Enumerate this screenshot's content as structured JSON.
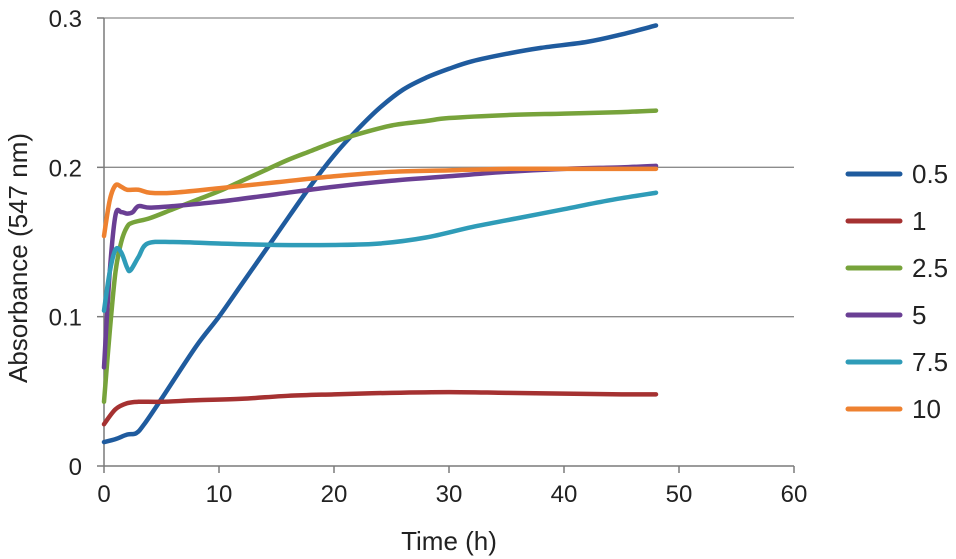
{
  "chart_data": {
    "type": "line",
    "title": "",
    "xlabel": "Time (h)",
    "ylabel": "Absorbance (547 nm)",
    "xlim": [
      0,
      60
    ],
    "ylim": [
      0,
      0.3
    ],
    "x_ticks": [
      0,
      10,
      20,
      30,
      40,
      50,
      60
    ],
    "y_ticks": [
      0,
      0.1,
      0.2,
      0.3
    ],
    "x_tick_labels": [
      "0",
      "10",
      "20",
      "30",
      "40",
      "50",
      "60"
    ],
    "y_tick_labels": [
      "0",
      "0.1",
      "0.2",
      "0.3"
    ],
    "grid": "horizontal",
    "legend_position": "right",
    "series": [
      {
        "name": "0.5",
        "color": "#1f5b9e",
        "points": [
          [
            0,
            0.016
          ],
          [
            1,
            0.018
          ],
          [
            2,
            0.021
          ],
          [
            2.8,
            0.022
          ],
          [
            3.5,
            0.028
          ],
          [
            5,
            0.045
          ],
          [
            8,
            0.08
          ],
          [
            10,
            0.1
          ],
          [
            12,
            0.122
          ],
          [
            15,
            0.155
          ],
          [
            18,
            0.188
          ],
          [
            20,
            0.208
          ],
          [
            22,
            0.225
          ],
          [
            24,
            0.24
          ],
          [
            26,
            0.252
          ],
          [
            28,
            0.26
          ],
          [
            30,
            0.266
          ],
          [
            32,
            0.271
          ],
          [
            35,
            0.276
          ],
          [
            38,
            0.28
          ],
          [
            42,
            0.284
          ],
          [
            45,
            0.289
          ],
          [
            48,
            0.295
          ]
        ]
      },
      {
        "name": "1",
        "color": "#a53131",
        "points": [
          [
            0,
            0.028
          ],
          [
            1,
            0.038
          ],
          [
            2,
            0.042
          ],
          [
            3,
            0.043
          ],
          [
            5,
            0.043
          ],
          [
            8,
            0.044
          ],
          [
            12,
            0.045
          ],
          [
            16,
            0.047
          ],
          [
            20,
            0.048
          ],
          [
            25,
            0.049
          ],
          [
            30,
            0.0495
          ],
          [
            35,
            0.049
          ],
          [
            40,
            0.0485
          ],
          [
            45,
            0.048
          ],
          [
            48,
            0.048
          ]
        ]
      },
      {
        "name": "2.5",
        "color": "#77a33b",
        "points": [
          [
            0,
            0.043
          ],
          [
            0.5,
            0.09
          ],
          [
            1,
            0.13
          ],
          [
            1.5,
            0.15
          ],
          [
            2,
            0.16
          ],
          [
            2.5,
            0.163
          ],
          [
            4,
            0.166
          ],
          [
            6,
            0.172
          ],
          [
            8,
            0.178
          ],
          [
            10,
            0.184
          ],
          [
            12,
            0.191
          ],
          [
            14,
            0.198
          ],
          [
            16,
            0.205
          ],
          [
            18,
            0.211
          ],
          [
            20,
            0.217
          ],
          [
            22,
            0.222
          ],
          [
            25,
            0.228
          ],
          [
            28,
            0.231
          ],
          [
            30,
            0.233
          ],
          [
            35,
            0.235
          ],
          [
            40,
            0.236
          ],
          [
            45,
            0.237
          ],
          [
            48,
            0.238
          ]
        ]
      },
      {
        "name": "5",
        "color": "#6a3f94",
        "points": [
          [
            0,
            0.066
          ],
          [
            0.5,
            0.13
          ],
          [
            1,
            0.168
          ],
          [
            1.5,
            0.17
          ],
          [
            2,
            0.169
          ],
          [
            2.5,
            0.17
          ],
          [
            3,
            0.174
          ],
          [
            4,
            0.173
          ],
          [
            6,
            0.174
          ],
          [
            10,
            0.177
          ],
          [
            15,
            0.182
          ],
          [
            20,
            0.187
          ],
          [
            25,
            0.191
          ],
          [
            30,
            0.194
          ],
          [
            35,
            0.197
          ],
          [
            40,
            0.199
          ],
          [
            45,
            0.2
          ],
          [
            48,
            0.201
          ]
        ]
      },
      {
        "name": "7.5",
        "color": "#2f9cb8",
        "points": [
          [
            0,
            0.104
          ],
          [
            0.5,
            0.13
          ],
          [
            1,
            0.145
          ],
          [
            1.5,
            0.143
          ],
          [
            2,
            0.133
          ],
          [
            2.3,
            0.131
          ],
          [
            3,
            0.14
          ],
          [
            3.8,
            0.149
          ],
          [
            6,
            0.15
          ],
          [
            10,
            0.149
          ],
          [
            15,
            0.148
          ],
          [
            20,
            0.148
          ],
          [
            24,
            0.149
          ],
          [
            28,
            0.153
          ],
          [
            32,
            0.16
          ],
          [
            36,
            0.166
          ],
          [
            40,
            0.172
          ],
          [
            44,
            0.178
          ],
          [
            48,
            0.183
          ]
        ]
      },
      {
        "name": "10",
        "color": "#ee8130",
        "points": [
          [
            0,
            0.154
          ],
          [
            0.5,
            0.178
          ],
          [
            1,
            0.188
          ],
          [
            1.5,
            0.187
          ],
          [
            2,
            0.185
          ],
          [
            3,
            0.185
          ],
          [
            4,
            0.183
          ],
          [
            6,
            0.183
          ],
          [
            10,
            0.186
          ],
          [
            15,
            0.19
          ],
          [
            20,
            0.194
          ],
          [
            25,
            0.197
          ],
          [
            30,
            0.198
          ],
          [
            35,
            0.199
          ],
          [
            40,
            0.199
          ],
          [
            45,
            0.199
          ],
          [
            48,
            0.199
          ]
        ]
      }
    ]
  }
}
